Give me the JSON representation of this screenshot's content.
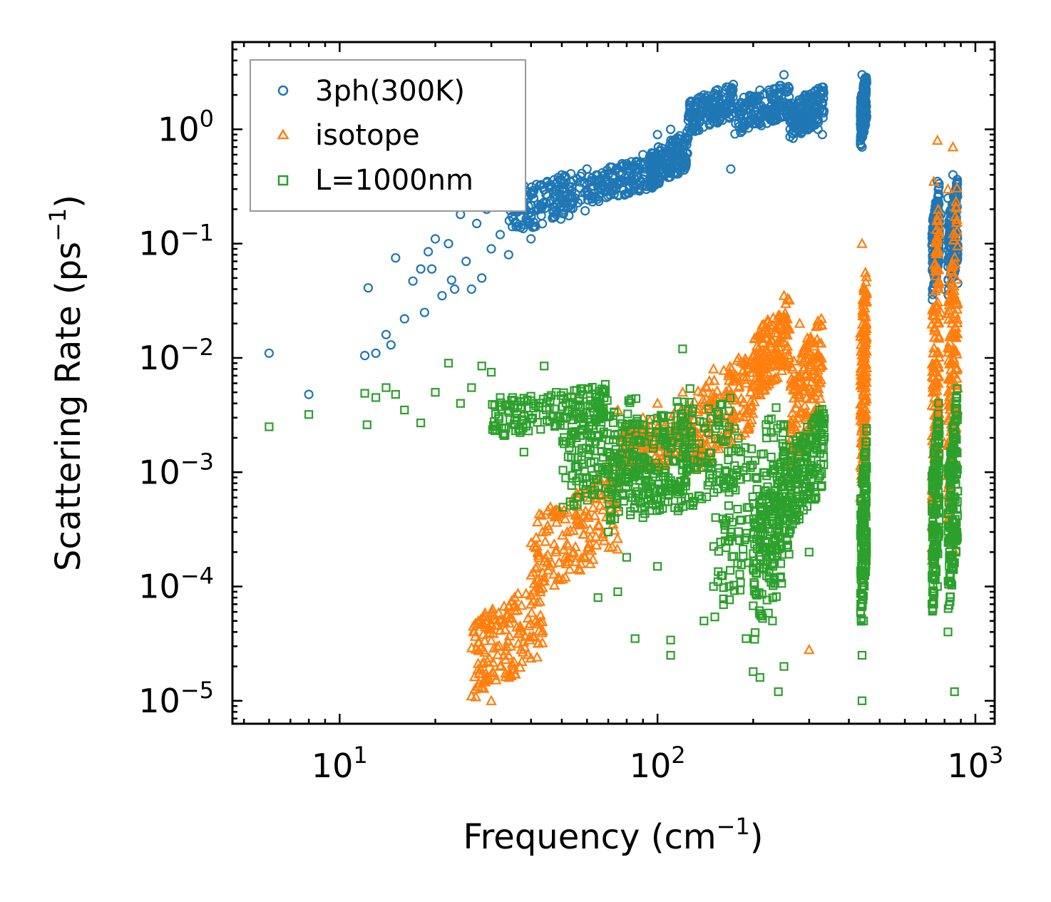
{
  "chart_data": {
    "type": "scatter",
    "xscale": "log",
    "yscale": "log",
    "xlim": [
      4.6,
      1150
    ],
    "ylim": [
      6.3e-06,
      5.8
    ],
    "xlabel": {
      "main": "Frequency (cm",
      "sup": "−1",
      "end": ")"
    },
    "ylabel": {
      "main": "Scattering Rate (ps",
      "sup": "−1",
      "end": ")"
    },
    "xticks": [
      {
        "value": 10,
        "base": "10",
        "exp": "1"
      },
      {
        "value": 100,
        "base": "10",
        "exp": "2"
      },
      {
        "value": 1000,
        "base": "10",
        "exp": "3"
      }
    ],
    "yticks": [
      {
        "value": 1,
        "base": "10",
        "exp": "0"
      },
      {
        "value": 0.1,
        "base": "10",
        "exp": "−1"
      },
      {
        "value": 0.01,
        "base": "10",
        "exp": "−2"
      },
      {
        "value": 0.001,
        "base": "10",
        "exp": "−3"
      },
      {
        "value": 0.0001,
        "base": "10",
        "exp": "−4"
      },
      {
        "value": 1e-05,
        "base": "10",
        "exp": "−5"
      }
    ],
    "legend": {
      "location": "top-left"
    },
    "series": [
      {
        "name": "3ph(300K)",
        "marker": "circle",
        "color": "#1f77b4",
        "points": [
          [
            6,
            0.011
          ],
          [
            8,
            0.0048
          ],
          [
            12,
            0.0105
          ],
          [
            12.3,
            0.041
          ],
          [
            13,
            0.011
          ],
          [
            14,
            0.016
          ],
          [
            14.5,
            0.013
          ],
          [
            15,
            0.075
          ],
          [
            16,
            0.022
          ],
          [
            17,
            0.047
          ],
          [
            18,
            0.06
          ],
          [
            18.5,
            0.025
          ],
          [
            19,
            0.085
          ],
          [
            19.5,
            0.06
          ],
          [
            20,
            0.11
          ],
          [
            21,
            0.035
          ],
          [
            22,
            0.1
          ],
          [
            22.5,
            0.048
          ],
          [
            23,
            0.04
          ],
          [
            24,
            0.18
          ],
          [
            25,
            0.07
          ],
          [
            26,
            0.04
          ],
          [
            27,
            0.15
          ],
          [
            28,
            0.05
          ],
          [
            29,
            0.2
          ],
          [
            30,
            0.09
          ],
          [
            31,
            0.25
          ],
          [
            32,
            0.12
          ],
          [
            33,
            0.3
          ],
          [
            34,
            0.08
          ],
          [
            35,
            0.28
          ],
          [
            36,
            0.15
          ],
          [
            38,
            0.32
          ],
          [
            40,
            0.11
          ],
          [
            42,
            0.2
          ],
          [
            45,
            0.35
          ],
          [
            48,
            0.18
          ],
          [
            50,
            0.4
          ],
          [
            55,
            0.25
          ],
          [
            60,
            0.45
          ],
          [
            65,
            0.3
          ],
          [
            70,
            0.4
          ],
          [
            75,
            0.35
          ],
          [
            80,
            0.5
          ],
          [
            85,
            0.45
          ],
          [
            90,
            0.6
          ],
          [
            95,
            0.55
          ],
          [
            100,
            0.9
          ],
          [
            110,
            1.0
          ],
          [
            115,
            0.7
          ],
          [
            120,
            0.5
          ],
          [
            125,
            1.2
          ],
          [
            130,
            1.5
          ],
          [
            140,
            2.0
          ],
          [
            150,
            1.4
          ],
          [
            160,
            1.2
          ],
          [
            170,
            0.45
          ],
          [
            180,
            1.6
          ],
          [
            190,
            1.5
          ],
          [
            200,
            1.8
          ],
          [
            210,
            2.2
          ],
          [
            220,
            1.5
          ],
          [
            230,
            1.3
          ],
          [
            250,
            3.0
          ],
          [
            270,
            1.2
          ],
          [
            290,
            1.0
          ],
          [
            300,
            1.6
          ],
          [
            320,
            1.0
          ],
          [
            330,
            0.9
          ],
          [
            440,
            3.0
          ],
          [
            440,
            0.7
          ],
          [
            445,
            1.5
          ],
          [
            760,
            0.35
          ],
          [
            780,
            0.18
          ],
          [
            800,
            0.04
          ],
          [
            820,
            0.25
          ],
          [
            850,
            0.4
          ],
          [
            870,
            0.3
          ],
          [
            880,
            0.045
          ]
        ],
        "clusters": [
          {
            "x": [
              34,
              60
            ],
            "y": [
              0.12,
              0.45
            ]
          },
          {
            "x": [
              60,
              100
            ],
            "y": [
              0.22,
              0.6
            ]
          },
          {
            "x": [
              95,
              125
            ],
            "y": [
              0.3,
              1.0
            ]
          },
          {
            "x": [
              125,
              175
            ],
            "y": [
              0.9,
              2.6
            ]
          },
          {
            "x": [
              175,
              260
            ],
            "y": [
              0.9,
              2.6
            ]
          },
          {
            "x": [
              260,
              335
            ],
            "y": [
              0.8,
              2.5
            ]
          },
          {
            "x": [
              435,
              455
            ],
            "y": [
              0.7,
              3.2
            ]
          },
          {
            "x": [
              730,
              770
            ],
            "y": [
              0.03,
              0.35
            ]
          },
          {
            "x": [
              820,
              880
            ],
            "y": [
              0.03,
              0.4
            ]
          }
        ]
      },
      {
        "name": "isotope",
        "marker": "triangle",
        "color": "#ff7f0e",
        "points": [
          [
            26,
            1.1e-05
          ],
          [
            28,
            1.3e-05
          ],
          [
            30,
            1e-05
          ],
          [
            32,
            2e-05
          ],
          [
            34,
            2.5e-05
          ],
          [
            37,
            4.5e-05
          ],
          [
            40,
            7e-05
          ],
          [
            44,
            0.00012
          ],
          [
            48,
            0.0002
          ],
          [
            52,
            0.0003
          ],
          [
            56,
            0.0005
          ],
          [
            60,
            0.0007
          ],
          [
            65,
            0.0009
          ],
          [
            70,
            0.0012
          ],
          [
            75,
            0.0035
          ],
          [
            80,
            0.0025
          ],
          [
            90,
            0.003
          ],
          [
            100,
            0.004
          ],
          [
            120,
            0.005
          ],
          [
            150,
            0.008
          ],
          [
            180,
            0.01
          ],
          [
            190,
            0.006
          ],
          [
            220,
            0.012
          ],
          [
            250,
            0.035
          ],
          [
            260,
            0.01
          ],
          [
            280,
            0.02
          ],
          [
            300,
            2.8e-05
          ],
          [
            320,
            0.003
          ],
          [
            440,
            0.1
          ],
          [
            440,
            0.0065
          ],
          [
            445,
            0.001
          ],
          [
            740,
            0.35
          ],
          [
            760,
            0.8
          ],
          [
            780,
            0.025
          ],
          [
            800,
            0.0018
          ],
          [
            820,
            0.3
          ],
          [
            850,
            0.7
          ],
          [
            860,
            0.0002
          ],
          [
            870,
            0.015
          ]
        ],
        "clusters": [
          {
            "x": [
              26,
              44
            ],
            "y": [
              1e-05,
              0.00012
            ]
          },
          {
            "x": [
              40,
              75
            ],
            "y": [
              8e-05,
              0.001
            ]
          },
          {
            "x": [
              75,
              130
            ],
            "y": [
              0.0008,
              0.004
            ]
          },
          {
            "x": [
              130,
              200
            ],
            "y": [
              0.001,
              0.012
            ]
          },
          {
            "x": [
              200,
              260
            ],
            "y": [
              0.004,
              0.035
            ]
          },
          {
            "x": [
              260,
              330
            ],
            "y": [
              0.001,
              0.025
            ]
          },
          {
            "x": [
              435,
              455
            ],
            "y": [
              0.0005,
              0.1
            ]
          },
          {
            "x": [
              730,
              770
            ],
            "y": [
              0.00015,
              0.4
            ]
          },
          {
            "x": [
              820,
              880
            ],
            "y": [
              0.0002,
              0.4
            ]
          }
        ]
      },
      {
        "name": "L=1000nm",
        "marker": "square",
        "color": "#2ca02c",
        "points": [
          [
            6,
            0.0025
          ],
          [
            8,
            0.0032
          ],
          [
            12,
            0.0049
          ],
          [
            12.2,
            0.0026
          ],
          [
            13,
            0.0045
          ],
          [
            14,
            0.0055
          ],
          [
            15,
            0.0048
          ],
          [
            16,
            0.0035
          ],
          [
            18,
            0.0027
          ],
          [
            20,
            0.005
          ],
          [
            22,
            0.009
          ],
          [
            24,
            0.004
          ],
          [
            26,
            0.0055
          ],
          [
            28,
            0.0085
          ],
          [
            30,
            0.0075
          ],
          [
            32,
            0.0045
          ],
          [
            35,
            0.0045
          ],
          [
            38,
            0.0015
          ],
          [
            40,
            0.0042
          ],
          [
            44,
            0.0085
          ],
          [
            48,
            0.005
          ],
          [
            52,
            0.0045
          ],
          [
            56,
            0.0006
          ],
          [
            60,
            0.0009
          ],
          [
            65,
            8e-05
          ],
          [
            70,
            0.0003
          ],
          [
            75,
            9e-05
          ],
          [
            80,
            0.00018
          ],
          [
            85,
            3.5e-05
          ],
          [
            90,
            0.0004
          ],
          [
            100,
            0.00015
          ],
          [
            110,
            2.5e-05
          ],
          [
            110,
            3.4e-05
          ],
          [
            120,
            0.012
          ],
          [
            140,
            5e-05
          ],
          [
            150,
            0.0001
          ],
          [
            170,
            0.0003
          ],
          [
            190,
            3.5e-05
          ],
          [
            200,
            1.8e-05
          ],
          [
            210,
            1.6e-05
          ],
          [
            230,
            5e-05
          ],
          [
            240,
            1.2e-05
          ],
          [
            250,
            2e-05
          ],
          [
            260,
            0.0003
          ],
          [
            300,
            0.0002
          ],
          [
            440,
            2.5e-05
          ],
          [
            440,
            1e-05
          ],
          [
            445,
            5e-05
          ],
          [
            740,
            7e-05
          ],
          [
            760,
            0.0001
          ],
          [
            820,
            4e-05
          ],
          [
            860,
            1.2e-05
          ],
          [
            870,
            0.0002
          ]
        ],
        "clusters": [
          {
            "x": [
              30,
              70
            ],
            "y": [
              0.002,
              0.006
            ]
          },
          {
            "x": [
              50,
              90
            ],
            "y": [
              0.0004,
              0.005
            ]
          },
          {
            "x": [
              70,
              130
            ],
            "y": [
              0.0003,
              0.006
            ]
          },
          {
            "x": [
              90,
              180
            ],
            "y": [
              0.0003,
              0.005
            ]
          },
          {
            "x": [
              150,
              260
            ],
            "y": [
              5e-05,
              0.005
            ]
          },
          {
            "x": [
              200,
              260
            ],
            "y": [
              3e-05,
              0.002
            ]
          },
          {
            "x": [
              260,
              335
            ],
            "y": [
              0.0003,
              0.004
            ]
          },
          {
            "x": [
              435,
              455
            ],
            "y": [
              4e-05,
              0.0025
            ]
          },
          {
            "x": [
              730,
              770
            ],
            "y": [
              5e-05,
              0.005
            ]
          },
          {
            "x": [
              820,
              880
            ],
            "y": [
              5e-05,
              0.006
            ]
          }
        ]
      }
    ]
  }
}
